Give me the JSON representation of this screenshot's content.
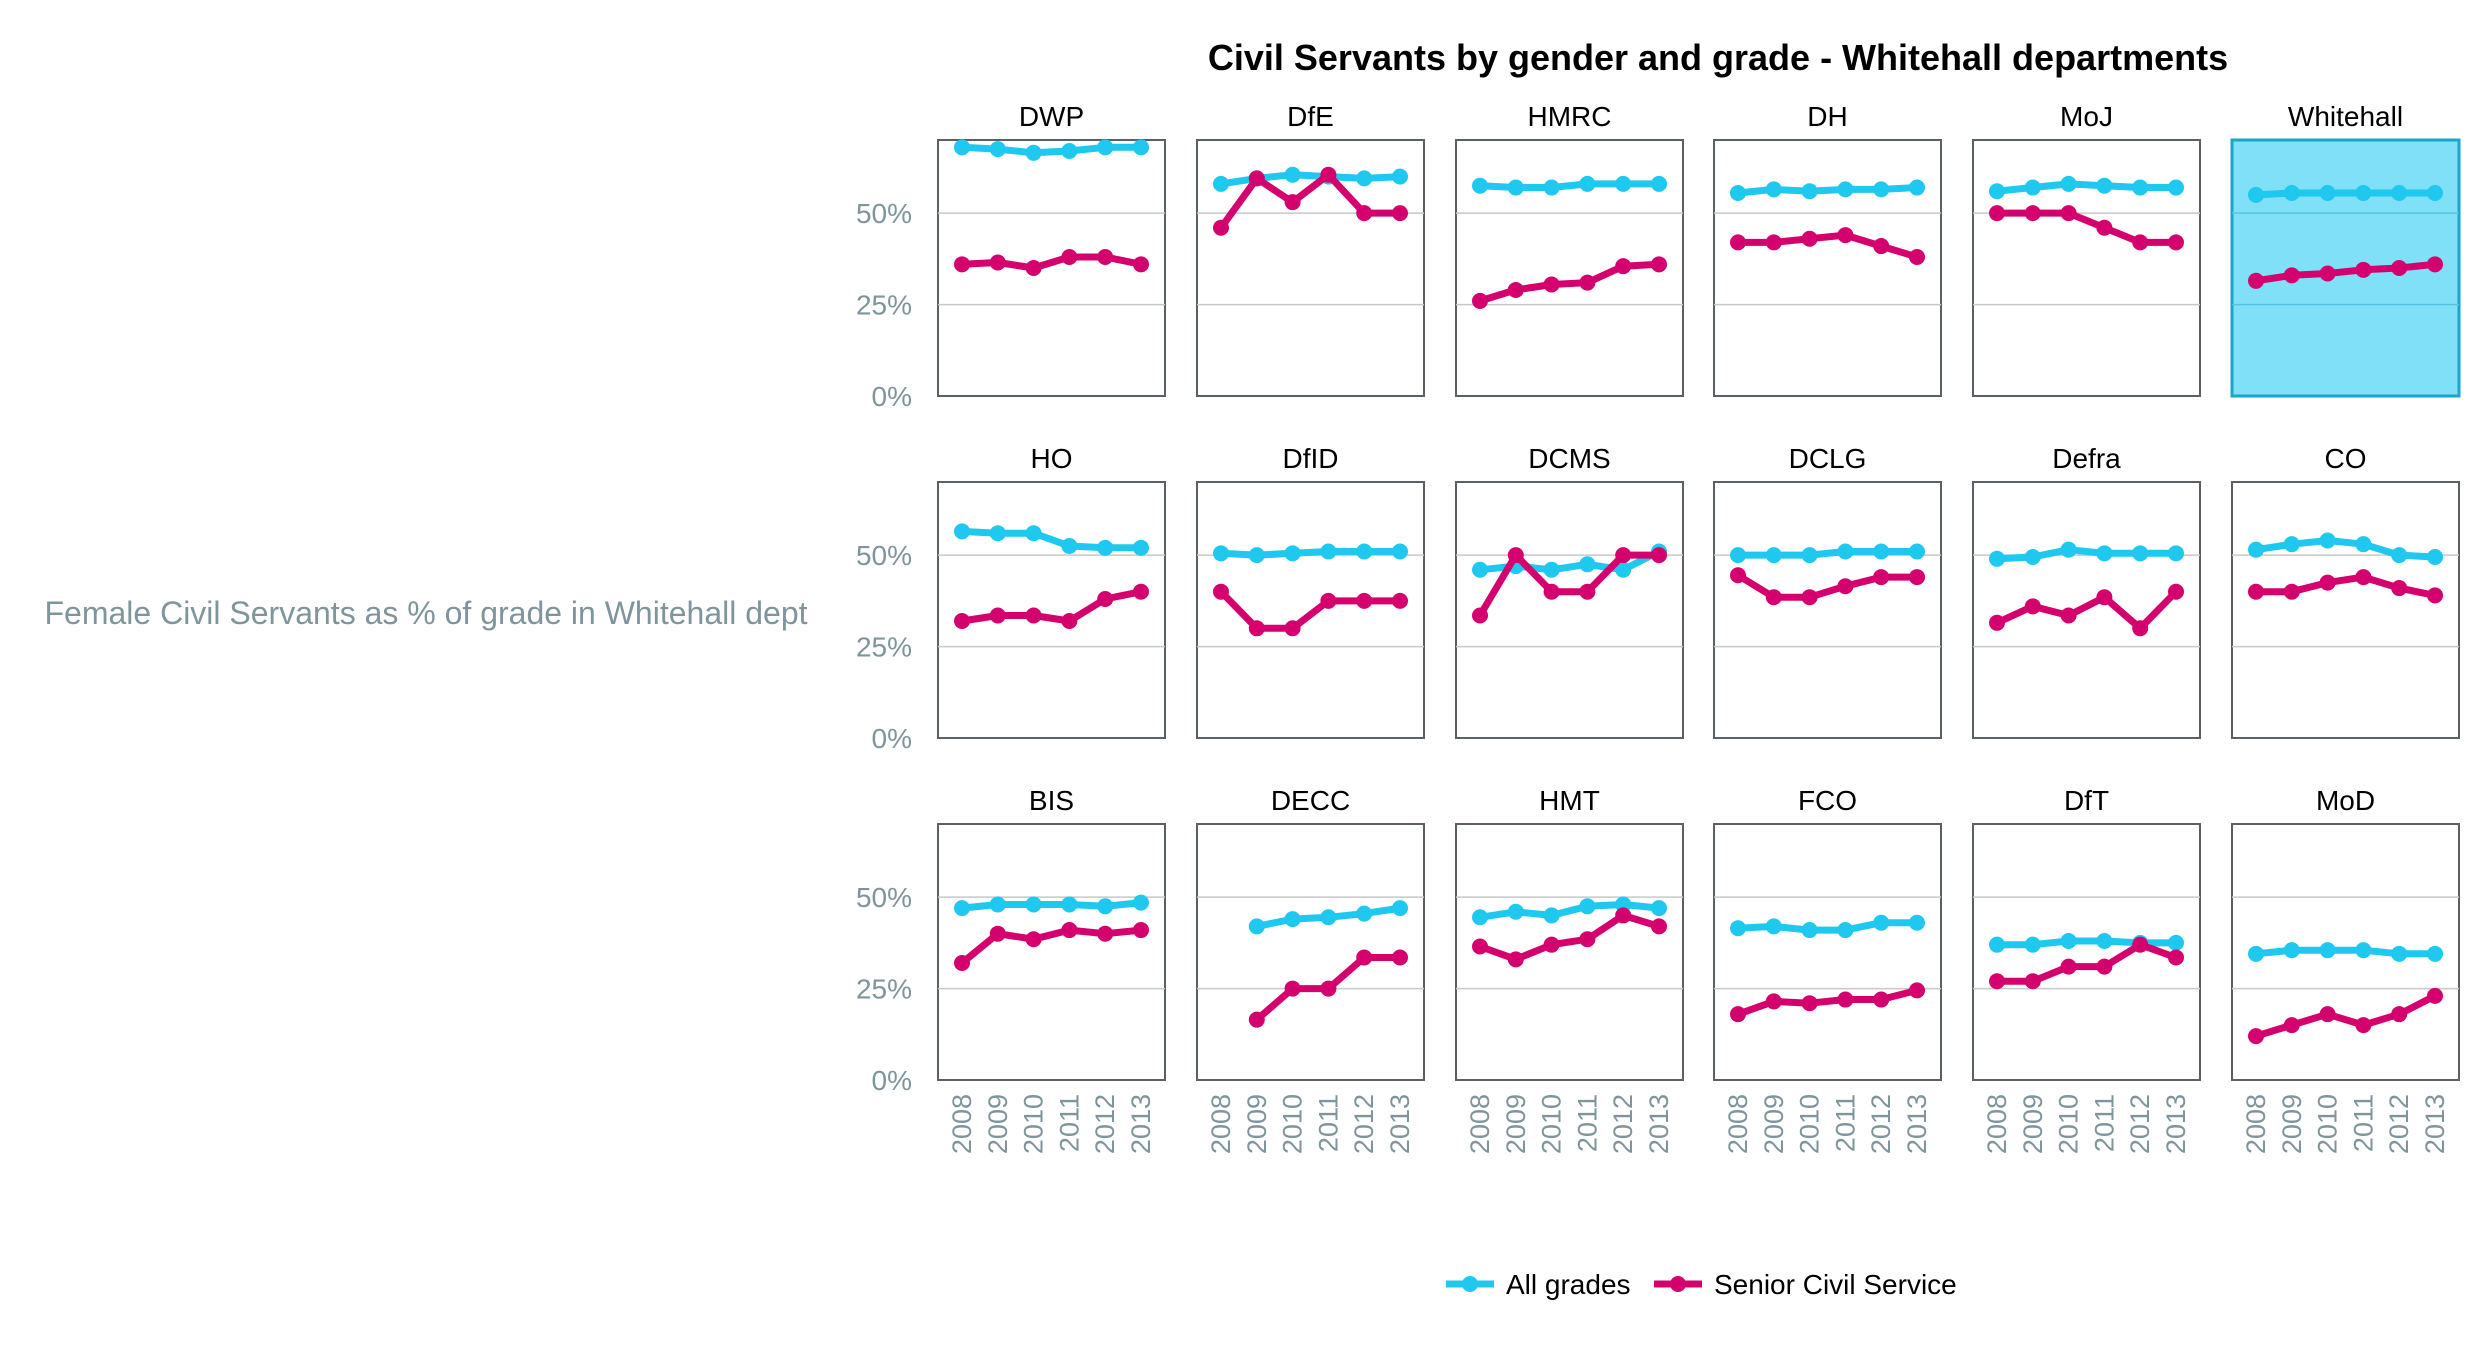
{
  "chart_data": {
    "type": "line",
    "title": "Civil Servants by gender and grade - Whitehall departments",
    "ylabel": "Female Civil Servants as % of grade in Whitehall dept",
    "x": [
      "2008",
      "2009",
      "2010",
      "2011",
      "2012",
      "2013"
    ],
    "ylim": [
      0,
      70
    ],
    "yticks": [
      "0%",
      "25%",
      "50%"
    ],
    "ytick_values": [
      0,
      25,
      50
    ],
    "grid": true,
    "legend_placement": "bottom",
    "colors": {
      "All grades": "#1ec8ee",
      "Senior Civil Service": "#d4006e",
      "highlight_fill": "#7fe0f8",
      "axis_text": "#7f959b"
    },
    "series_names": [
      "All grades",
      "Senior Civil Service"
    ],
    "panels": [
      {
        "name": "DWP",
        "highlight": false,
        "all": [
          68,
          67.5,
          66.5,
          67,
          68,
          68
        ],
        "scs": [
          36,
          36.5,
          35,
          38,
          38,
          36
        ]
      },
      {
        "name": "DfE",
        "highlight": false,
        "all": [
          58,
          59.5,
          60.5,
          60,
          59.5,
          60
        ],
        "scs": [
          46,
          59.5,
          53,
          60.5,
          50,
          50
        ]
      },
      {
        "name": "HMRC",
        "highlight": false,
        "all": [
          57.5,
          57,
          57,
          58,
          58,
          58
        ],
        "scs": [
          26,
          29,
          30.5,
          31,
          35.5,
          36
        ]
      },
      {
        "name": "DH",
        "highlight": false,
        "all": [
          55.5,
          56.5,
          56,
          56.5,
          56.5,
          57
        ],
        "scs": [
          42,
          42,
          43,
          44,
          41,
          38
        ]
      },
      {
        "name": "MoJ",
        "highlight": false,
        "all": [
          56,
          57,
          58,
          57.5,
          57,
          57
        ],
        "scs": [
          50,
          50,
          50,
          46,
          42,
          42
        ]
      },
      {
        "name": "Whitehall",
        "highlight": true,
        "all": [
          55,
          55.5,
          55.5,
          55.5,
          55.5,
          55.5
        ],
        "scs": [
          31.5,
          33,
          33.5,
          34.5,
          35,
          36
        ]
      },
      {
        "name": "HO",
        "highlight": false,
        "all": [
          56.5,
          56,
          56,
          52.5,
          52,
          52
        ],
        "scs": [
          32,
          33.5,
          33.5,
          32,
          38,
          40
        ]
      },
      {
        "name": "DfID",
        "highlight": false,
        "all": [
          50.5,
          50,
          50.5,
          51,
          51,
          51
        ],
        "scs": [
          40,
          30,
          30,
          37.5,
          37.5,
          37.5
        ]
      },
      {
        "name": "DCMS",
        "highlight": false,
        "all": [
          46,
          47,
          46,
          47.5,
          46,
          51
        ],
        "scs": [
          33.5,
          50,
          40,
          40,
          50,
          50
        ]
      },
      {
        "name": "DCLG",
        "highlight": false,
        "all": [
          50,
          50,
          50,
          51,
          51,
          51
        ],
        "scs": [
          44.5,
          38.5,
          38.5,
          41.5,
          44,
          44
        ]
      },
      {
        "name": "Defra",
        "highlight": false,
        "all": [
          49,
          49.5,
          51.5,
          50.5,
          50.5,
          50.5
        ],
        "scs": [
          31.5,
          36,
          33.5,
          38.5,
          30,
          40
        ]
      },
      {
        "name": "CO",
        "highlight": false,
        "all": [
          51.5,
          53,
          54,
          53,
          50,
          49.5
        ],
        "scs": [
          40,
          40,
          42.5,
          44,
          41,
          39
        ]
      },
      {
        "name": "BIS",
        "highlight": false,
        "all": [
          47,
          48,
          48,
          48,
          47.5,
          48.5
        ],
        "scs": [
          32,
          40,
          38.5,
          41,
          40,
          41
        ]
      },
      {
        "name": "DECC",
        "highlight": false,
        "all": [
          null,
          42,
          44,
          44.5,
          45.5,
          47
        ],
        "scs": [
          null,
          16.5,
          25,
          25,
          33.5,
          33.5
        ]
      },
      {
        "name": "HMT",
        "highlight": false,
        "all": [
          44.5,
          46,
          45,
          47.5,
          48,
          47
        ],
        "scs": [
          36.5,
          33,
          37,
          38.5,
          45,
          42
        ]
      },
      {
        "name": "FCO",
        "highlight": false,
        "all": [
          41.5,
          42,
          41,
          41,
          43,
          43
        ],
        "scs": [
          18,
          21.5,
          21,
          22,
          22,
          24.5
        ]
      },
      {
        "name": "DfT",
        "highlight": false,
        "all": [
          37,
          37,
          38,
          38,
          37.5,
          37.5
        ],
        "scs": [
          27,
          27,
          31,
          31,
          37,
          33.5
        ]
      },
      {
        "name": "MoD",
        "highlight": false,
        "all": [
          34.5,
          35.5,
          35.5,
          35.5,
          34.5,
          34.5
        ],
        "scs": [
          12,
          15,
          18,
          15,
          18,
          23
        ]
      }
    ]
  }
}
